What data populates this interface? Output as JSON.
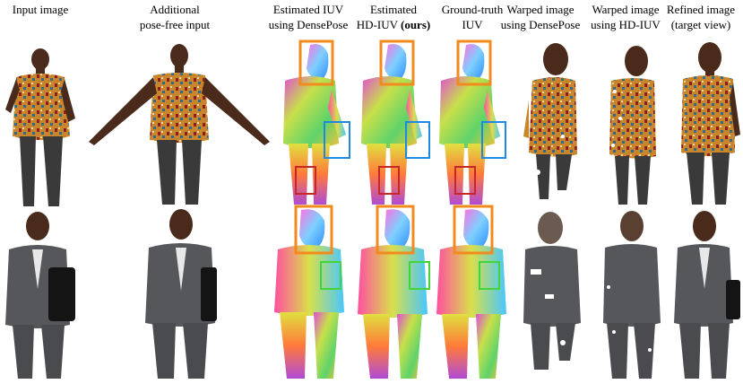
{
  "figure": {
    "columns": [
      {
        "line1": "Input image",
        "line2": "",
        "bold": ""
      },
      {
        "line1": "Additional",
        "line2": "pose-free input",
        "bold": ""
      },
      {
        "line1": "Estimated IUV",
        "line2": "using DensePose",
        "bold": ""
      },
      {
        "line1": "Estimated",
        "line2": "HD-IUV ",
        "bold": "(ours)"
      },
      {
        "line1": "Ground-truth",
        "line2": "IUV",
        "bold": ""
      },
      {
        "line1": "Warped image",
        "line2": "using DensePose",
        "bold": ""
      },
      {
        "line1": "Warped image",
        "line2": "using HD-IUV",
        "bold": ""
      },
      {
        "line1": "Refined image",
        "line2": "(target view)",
        "bold": ""
      }
    ],
    "rows": [
      "subject-patterned-shirt",
      "subject-grey-suit"
    ],
    "highlight_colors": {
      "head": "#f28a1e",
      "hand": "#1e88e5",
      "foot": "#c62828",
      "wrist": "#43d43a"
    },
    "palette": {
      "shirt": "#c9852b",
      "shirt_red": "#8b1e1e",
      "skin": "#4a2a1a",
      "pants": "#3a3a3a",
      "suit": "#55575a",
      "iuv_body": "#c8e04a",
      "iuv_head": "#7fd0ff"
    }
  }
}
